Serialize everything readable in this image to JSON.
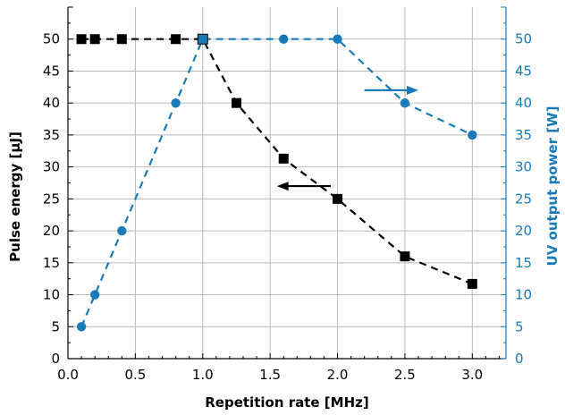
{
  "chart_data": {
    "type": "line",
    "xlabel": "Repetition rate [MHz]",
    "ylabel_left": "Pulse energy [µJ]",
    "ylabel_right": "UV output power [W]",
    "xlim": [
      0,
      3.25
    ],
    "ylim_left": [
      0,
      55
    ],
    "ylim_right": [
      0,
      55
    ],
    "x_ticks": [
      "0.0",
      "0.5",
      "1.0",
      "1.5",
      "2.0",
      "2.5",
      "3.0"
    ],
    "y_ticks_left": [
      "0",
      "5",
      "10",
      "15",
      "20",
      "25",
      "30",
      "35",
      "40",
      "45",
      "50"
    ],
    "y_ticks_right": [
      "0",
      "5",
      "10",
      "15",
      "20",
      "25",
      "30",
      "35",
      "40",
      "45",
      "50"
    ],
    "grid": true,
    "series": [
      {
        "axis": "left",
        "marker": "square",
        "color": "#000000",
        "x": [
          0.1,
          0.2,
          0.4,
          0.8,
          1.0,
          1.25,
          1.6,
          2.0,
          2.5,
          3.0
        ],
        "y": [
          50,
          50,
          50,
          50,
          50,
          40,
          31.3,
          25,
          16,
          11.7
        ]
      },
      {
        "axis": "right",
        "marker": "circle",
        "color": "#1a7ab8",
        "x": [
          0.1,
          0.2,
          0.4,
          0.8,
          1.0,
          1.6,
          2.0,
          2.5,
          3.0
        ],
        "y": [
          5,
          10,
          20,
          40,
          50,
          50,
          50,
          40,
          35
        ]
      }
    ],
    "annotations": [
      {
        "type": "arrow",
        "direction": "right",
        "color": "#1a7ab8",
        "x_from": 2.2,
        "x_to": 2.6,
        "y_right": 42
      },
      {
        "type": "arrow",
        "direction": "left",
        "color": "#000000",
        "x_from": 1.95,
        "x_to": 1.55,
        "y_left": 27
      }
    ]
  }
}
